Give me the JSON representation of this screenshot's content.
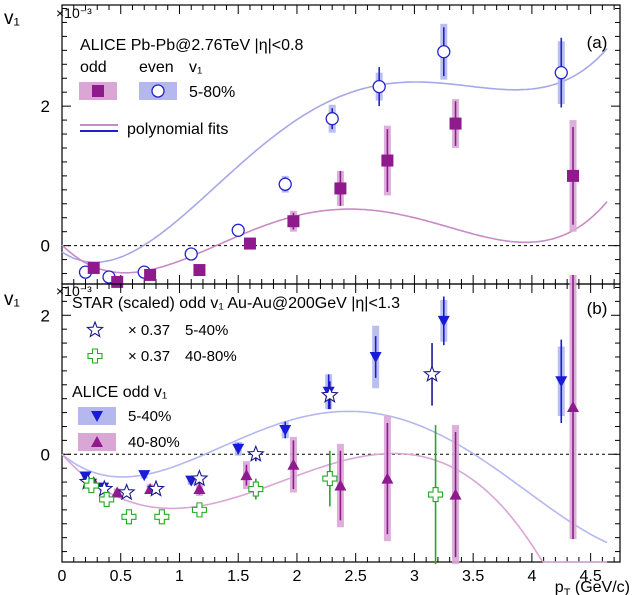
{
  "chart_data": [
    {
      "panel": "(a)",
      "type": "scatter",
      "exponent_label": "×10⁻³",
      "ylabel": "v₁",
      "header": "ALICE Pb-Pb@2.76TeV |η|<0.8",
      "legend_header_odd": "odd",
      "legend_header_even": "even",
      "legend_header_v1": "v₁",
      "centrality": "5-80%",
      "fit_label": "polynomial fits",
      "xlim": [
        0,
        4.75
      ],
      "ylim": [
        -0.55,
        3.45
      ],
      "y_ticks": [
        "0",
        "2"
      ],
      "y_tick_values": [
        0,
        2
      ],
      "colors": {
        "odd": "#8e1a8e",
        "even": "#2323c8",
        "odd_band": "#d9a6d6",
        "even_band": "#b4b8ee",
        "odd_fit": "#c98bc6",
        "even_fit": "#a6a8e8"
      },
      "series": [
        {
          "name": "even v₁",
          "marker": "open-circle",
          "x": [
            0.2,
            0.4,
            0.7,
            1.1,
            1.5,
            1.9,
            2.3,
            2.7,
            3.25,
            4.25
          ],
          "y": [
            -0.38,
            -0.45,
            -0.38,
            -0.12,
            0.22,
            0.88,
            1.82,
            2.28,
            2.78,
            2.48
          ],
          "err": [
            0.03,
            0.03,
            0.03,
            0.05,
            0.06,
            0.1,
            0.15,
            0.28,
            0.35,
            0.5
          ],
          "sys": [
            0.05,
            0.05,
            0.05,
            0.05,
            0.08,
            0.12,
            0.2,
            0.2,
            0.4,
            0.45
          ]
        },
        {
          "name": "odd v₁",
          "marker": "filled-square",
          "x": [
            0.27,
            0.47,
            0.75,
            1.17,
            1.6,
            1.97,
            2.37,
            2.77,
            3.35,
            4.35
          ],
          "y": [
            -0.32,
            -0.52,
            -0.42,
            -0.35,
            0.03,
            0.35,
            0.82,
            1.22,
            1.75,
            1.0
          ],
          "err": [
            0.03,
            0.03,
            0.03,
            0.05,
            0.06,
            0.12,
            0.25,
            0.45,
            0.32,
            0.7
          ],
          "sys": [
            0.04,
            0.04,
            0.05,
            0.06,
            0.08,
            0.15,
            0.25,
            0.5,
            0.35,
            0.8
          ]
        }
      ],
      "fits": [
        {
          "name": "even fit",
          "coefficients": [
            -0.09,
            -1.12,
            2.33,
            -0.82,
            0.086
          ]
        },
        {
          "name": "odd fit",
          "coefficients": [
            0.01,
            -1.67,
            2.1,
            -0.74,
            0.08
          ]
        }
      ]
    },
    {
      "panel": "(b)",
      "type": "scatter",
      "exponent_label": "×10⁻³",
      "ylabel": "v₁",
      "xlabel": "pT (GeV/c)",
      "xlabel_main": "p",
      "xlabel_sub": "T",
      "xlabel_rest": " (GeV/c)",
      "header": "STAR (scaled) odd v₁ Au-Au@200GeV |η|<1.3",
      "star_legend": [
        {
          "scale": "× 0.37",
          "centrality": "5-40%"
        },
        {
          "scale": "× 0.37",
          "centrality": "40-80%"
        }
      ],
      "alice_legend_title": "ALICE  odd v₁",
      "alice_legend": [
        "5-40%",
        "40-80%"
      ],
      "xlim": [
        0,
        4.75
      ],
      "x_ticks": [
        "0",
        "0.5",
        "1",
        "1.5",
        "2",
        "2.5",
        "3",
        "3.5",
        "4",
        "4.5"
      ],
      "x_tick_values": [
        0,
        0.5,
        1,
        1.5,
        2,
        2.5,
        3,
        3.5,
        4,
        4.5
      ],
      "ylim": [
        -1.55,
        2.45
      ],
      "y_ticks": [
        "0",
        "2"
      ],
      "y_tick_values": [
        0,
        2
      ],
      "colors": {
        "alice_5_40": "#1a1ad9",
        "alice_40_80": "#8e1a8e",
        "star_5_40": "#1a1a8c",
        "star_40_80": "#22aa22",
        "band_5_40": "#b4b8ee",
        "band_40_80": "#d9a6d6"
      },
      "series": [
        {
          "name": "ALICE 5-40%",
          "marker": "filled-triangle-down",
          "x": [
            0.2,
            0.35,
            0.7,
            1.1,
            1.5,
            1.9,
            2.27,
            2.67,
            3.25,
            4.25
          ],
          "y": [
            -0.32,
            -0.48,
            -0.3,
            -0.38,
            0.08,
            0.35,
            0.9,
            1.4,
            1.92,
            1.05
          ],
          "err": [
            0.03,
            0.04,
            0.04,
            0.06,
            0.08,
            0.12,
            0.25,
            0.3,
            0.35,
            0.6
          ],
          "sys": [
            0.05,
            0.05,
            0.05,
            0.06,
            0.1,
            0.12,
            0.25,
            0.45,
            0.3,
            0.5
          ]
        },
        {
          "name": "ALICE 40-80%",
          "marker": "filled-triangle-up",
          "x": [
            0.27,
            0.47,
            0.75,
            1.17,
            1.57,
            1.97,
            2.37,
            2.77,
            3.35,
            4.35
          ],
          "y": [
            -0.4,
            -0.55,
            -0.5,
            -0.5,
            -0.3,
            -0.15,
            -0.45,
            -0.35,
            -0.58,
            0.68
          ],
          "err": [
            0.04,
            0.05,
            0.05,
            0.08,
            0.15,
            0.35,
            0.5,
            0.8,
            0.9,
            1.9
          ],
          "sys": [
            0.06,
            0.06,
            0.07,
            0.1,
            0.2,
            0.4,
            0.6,
            0.9,
            1.0,
            1.9
          ]
        },
        {
          "name": "STAR × 0.37 5-40%",
          "marker": "open-star",
          "x": [
            0.22,
            0.36,
            0.55,
            0.8,
            1.17,
            1.65,
            2.28,
            3.15
          ],
          "y": [
            -0.4,
            -0.5,
            -0.55,
            -0.5,
            -0.35,
            0.0,
            0.85,
            1.15
          ],
          "err": [
            0.03,
            0.04,
            0.05,
            0.06,
            0.08,
            0.1,
            0.2,
            0.45
          ]
        },
        {
          "name": "STAR × 0.37 40-80%",
          "marker": "open-cross",
          "x": [
            0.25,
            0.38,
            0.57,
            0.85,
            1.17,
            1.65,
            2.28,
            3.18
          ],
          "y": [
            -0.45,
            -0.65,
            -0.9,
            -0.9,
            -0.8,
            -0.5,
            -0.35,
            -0.58
          ],
          "err": [
            0.04,
            0.05,
            0.06,
            0.08,
            0.1,
            0.15,
            0.4,
            1.0
          ]
        }
      ],
      "fits": [
        {
          "name": "5-40% fit",
          "coefficients": [
            0.0,
            -1.41,
            1.8,
            -0.595,
            0.056
          ]
        },
        {
          "name": "40-80% fit",
          "coefficients": [
            0.0,
            -1.87,
            1.33,
            -0.236,
            0.0
          ]
        }
      ]
    }
  ]
}
